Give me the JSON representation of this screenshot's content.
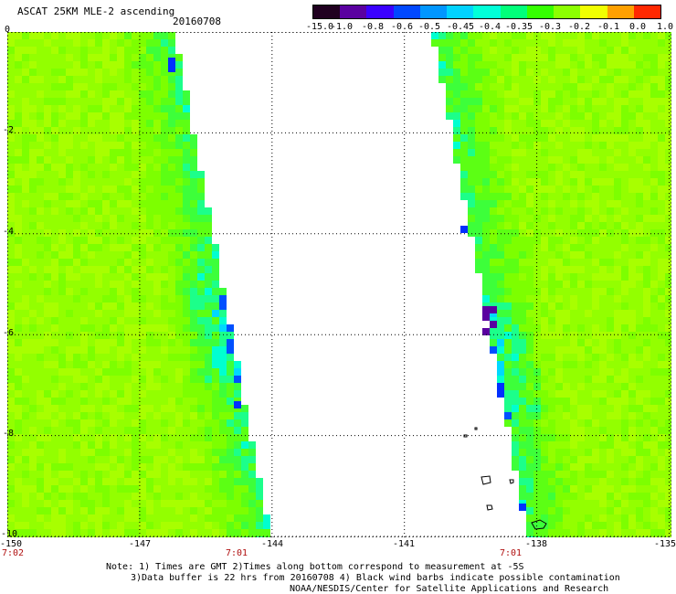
{
  "header": {
    "title": "ASCAT 25KM MLE-2 ascending",
    "date": "20160708"
  },
  "colorbar": {
    "labels": [
      "-15.0",
      "-1.0",
      "-0.8",
      "-0.6",
      "-0.5",
      "-0.45",
      "-0.4",
      "-0.35",
      "-0.3",
      "-0.2",
      "-0.1",
      "0.0",
      "1.0"
    ],
    "colors": [
      "#200020",
      "#5a00a0",
      "#3a00ff",
      "#0048ff",
      "#0096ff",
      "#00d2ff",
      "#00ffd8",
      "#00ff7a",
      "#35ff00",
      "#8cff00",
      "#f0ff00",
      "#ffa000",
      "#ff2800"
    ]
  },
  "map": {
    "lon_range": [
      -150,
      -135
    ],
    "lat_range": [
      0,
      -10
    ],
    "x_tick_labels": [
      "-150",
      "-147",
      "-144",
      "-141",
      "-138",
      "-135"
    ],
    "y_tick_labels": [
      "0",
      "-2",
      "-4",
      "-6",
      "-8",
      "-10"
    ],
    "time_labels": [
      "7:02",
      "7:01",
      "7:01"
    ],
    "grid": "dotted"
  },
  "notes": {
    "line1": "Note: 1) Times are GMT 2)Times along bottom correspond to measurement at -5S",
    "line2": "3)Data buffer is 22 hrs from 20160708 4) Black wind barbs indicate possible contamination",
    "line3": "NOAA/NESDIS/Center for Satellite Applications and Research"
  }
}
